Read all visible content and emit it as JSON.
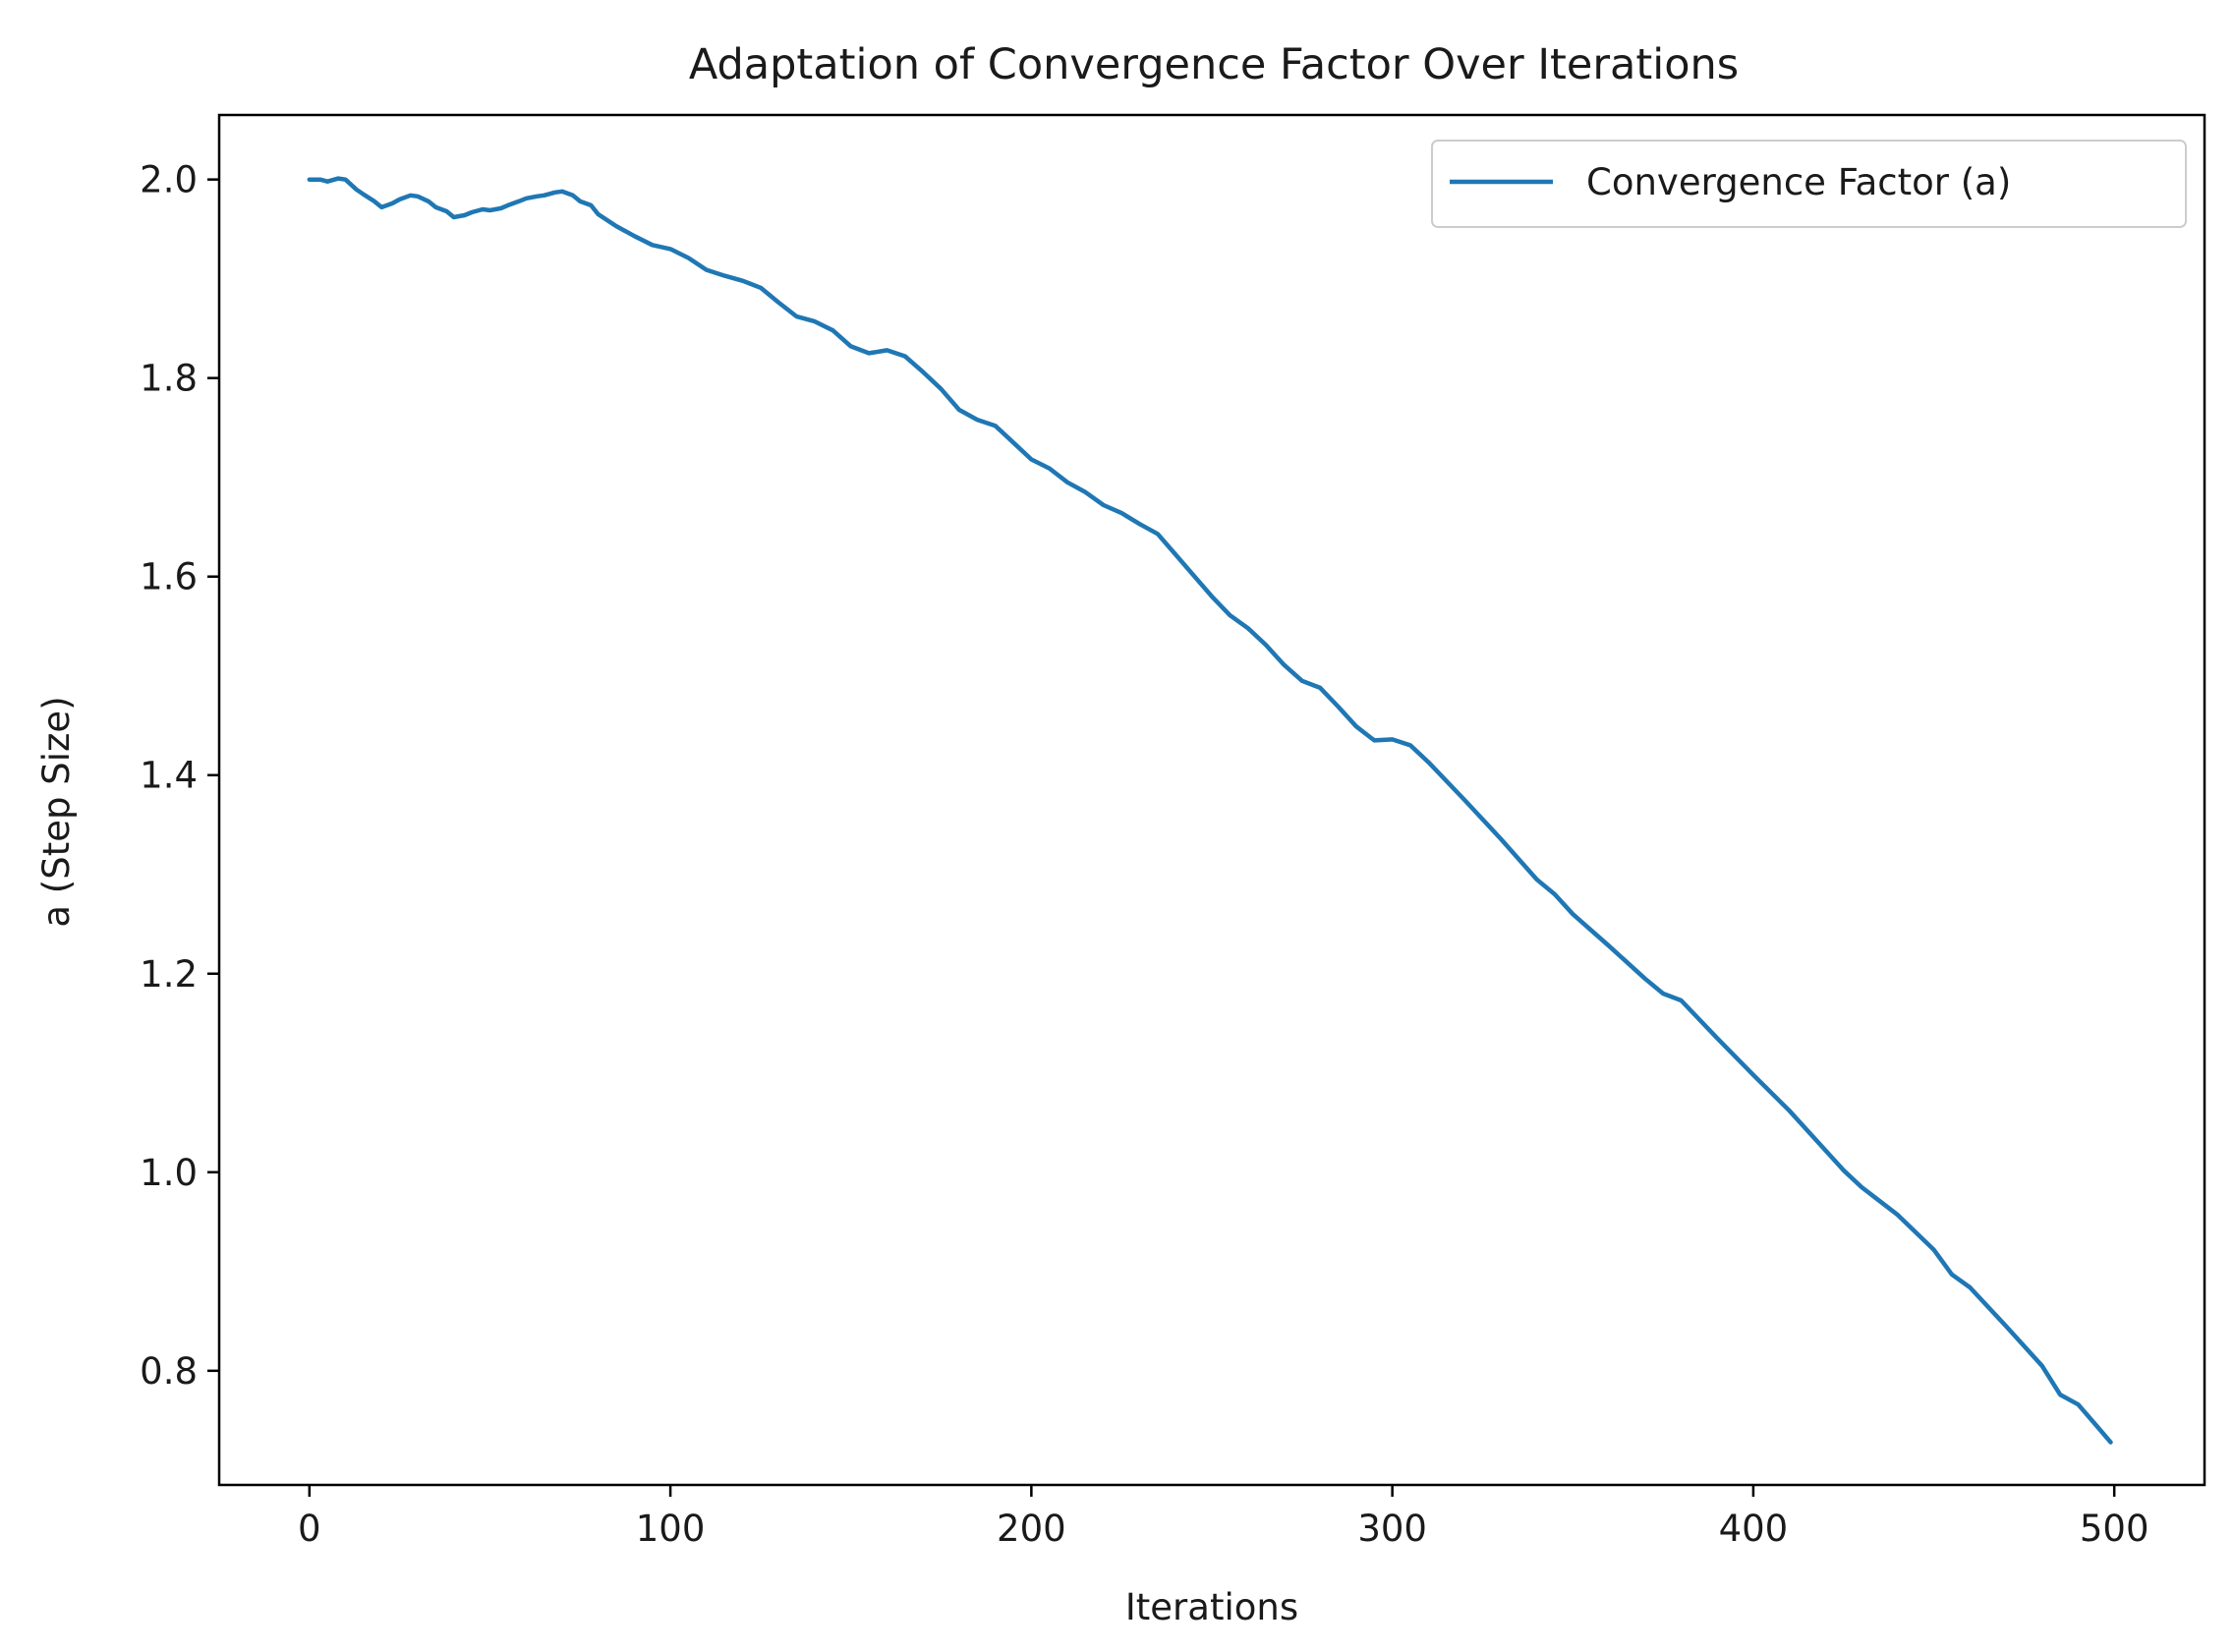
{
  "chart_data": {
    "type": "line",
    "title": "Adaptation of Convergence Factor Over Iterations",
    "xlabel": "Iterations",
    "ylabel": "a (Step Size)",
    "xlim": [
      -25,
      525
    ],
    "ylim": [
      0.685,
      2.065
    ],
    "xticks": [
      0,
      100,
      200,
      300,
      400,
      500
    ],
    "xtick_labels": [
      "0",
      "100",
      "200",
      "300",
      "400",
      "500"
    ],
    "yticks": [
      0.8,
      1.0,
      1.2,
      1.4,
      1.6,
      1.8,
      2.0
    ],
    "ytick_labels": [
      "0.8",
      "1.0",
      "1.2",
      "1.4",
      "1.6",
      "1.8",
      "2.0"
    ],
    "grid": false,
    "legend": "top-right",
    "series": [
      {
        "name": "Convergence Factor (a)",
        "color": "#1f77b4",
        "x": [
          0,
          3,
          5,
          8,
          10,
          13,
          15,
          18,
          20,
          23,
          25,
          28,
          30,
          33,
          35,
          38,
          40,
          43,
          45,
          48,
          50,
          53,
          55,
          58,
          60,
          63,
          65,
          68,
          70,
          73,
          75,
          78,
          80,
          85,
          90,
          95,
          100,
          105,
          110,
          115,
          120,
          125,
          130,
          135,
          140,
          145,
          150,
          155,
          160,
          165,
          170,
          175,
          180,
          185,
          190,
          195,
          200,
          205,
          210,
          215,
          220,
          225,
          230,
          235,
          240,
          245,
          250,
          255,
          260,
          265,
          270,
          275,
          280,
          285,
          290,
          295,
          300,
          305,
          310,
          320,
          330,
          340,
          345,
          350,
          360,
          370,
          375,
          380,
          390,
          400,
          410,
          420,
          425,
          430,
          440,
          450,
          455,
          460,
          470,
          480,
          485,
          490,
          495,
          499
        ],
        "y": [
          2.0,
          2.0,
          1.998,
          2.001,
          2.0,
          1.99,
          1.985,
          1.978,
          1.972,
          1.976,
          1.98,
          1.984,
          1.983,
          1.978,
          1.972,
          1.968,
          1.962,
          1.964,
          1.967,
          1.97,
          1.969,
          1.971,
          1.974,
          1.978,
          1.981,
          1.983,
          1.984,
          1.987,
          1.988,
          1.984,
          1.978,
          1.974,
          1.965,
          1.953,
          1.943,
          1.934,
          1.93,
          1.921,
          1.909,
          1.903,
          1.898,
          1.891,
          1.876,
          1.862,
          1.857,
          1.848,
          1.832,
          1.825,
          1.828,
          1.822,
          1.806,
          1.789,
          1.768,
          1.758,
          1.752,
          1.735,
          1.718,
          1.709,
          1.695,
          1.685,
          1.672,
          1.664,
          1.653,
          1.643,
          1.622,
          1.601,
          1.58,
          1.561,
          1.548,
          1.531,
          1.511,
          1.495,
          1.488,
          1.469,
          1.449,
          1.435,
          1.436,
          1.43,
          1.413,
          1.375,
          1.336,
          1.295,
          1.28,
          1.26,
          1.228,
          1.195,
          1.18,
          1.173,
          1.135,
          1.098,
          1.062,
          1.022,
          1.002,
          0.985,
          0.957,
          0.922,
          0.897,
          0.884,
          0.845,
          0.805,
          0.776,
          0.766,
          0.745,
          0.728
        ]
      }
    ]
  }
}
